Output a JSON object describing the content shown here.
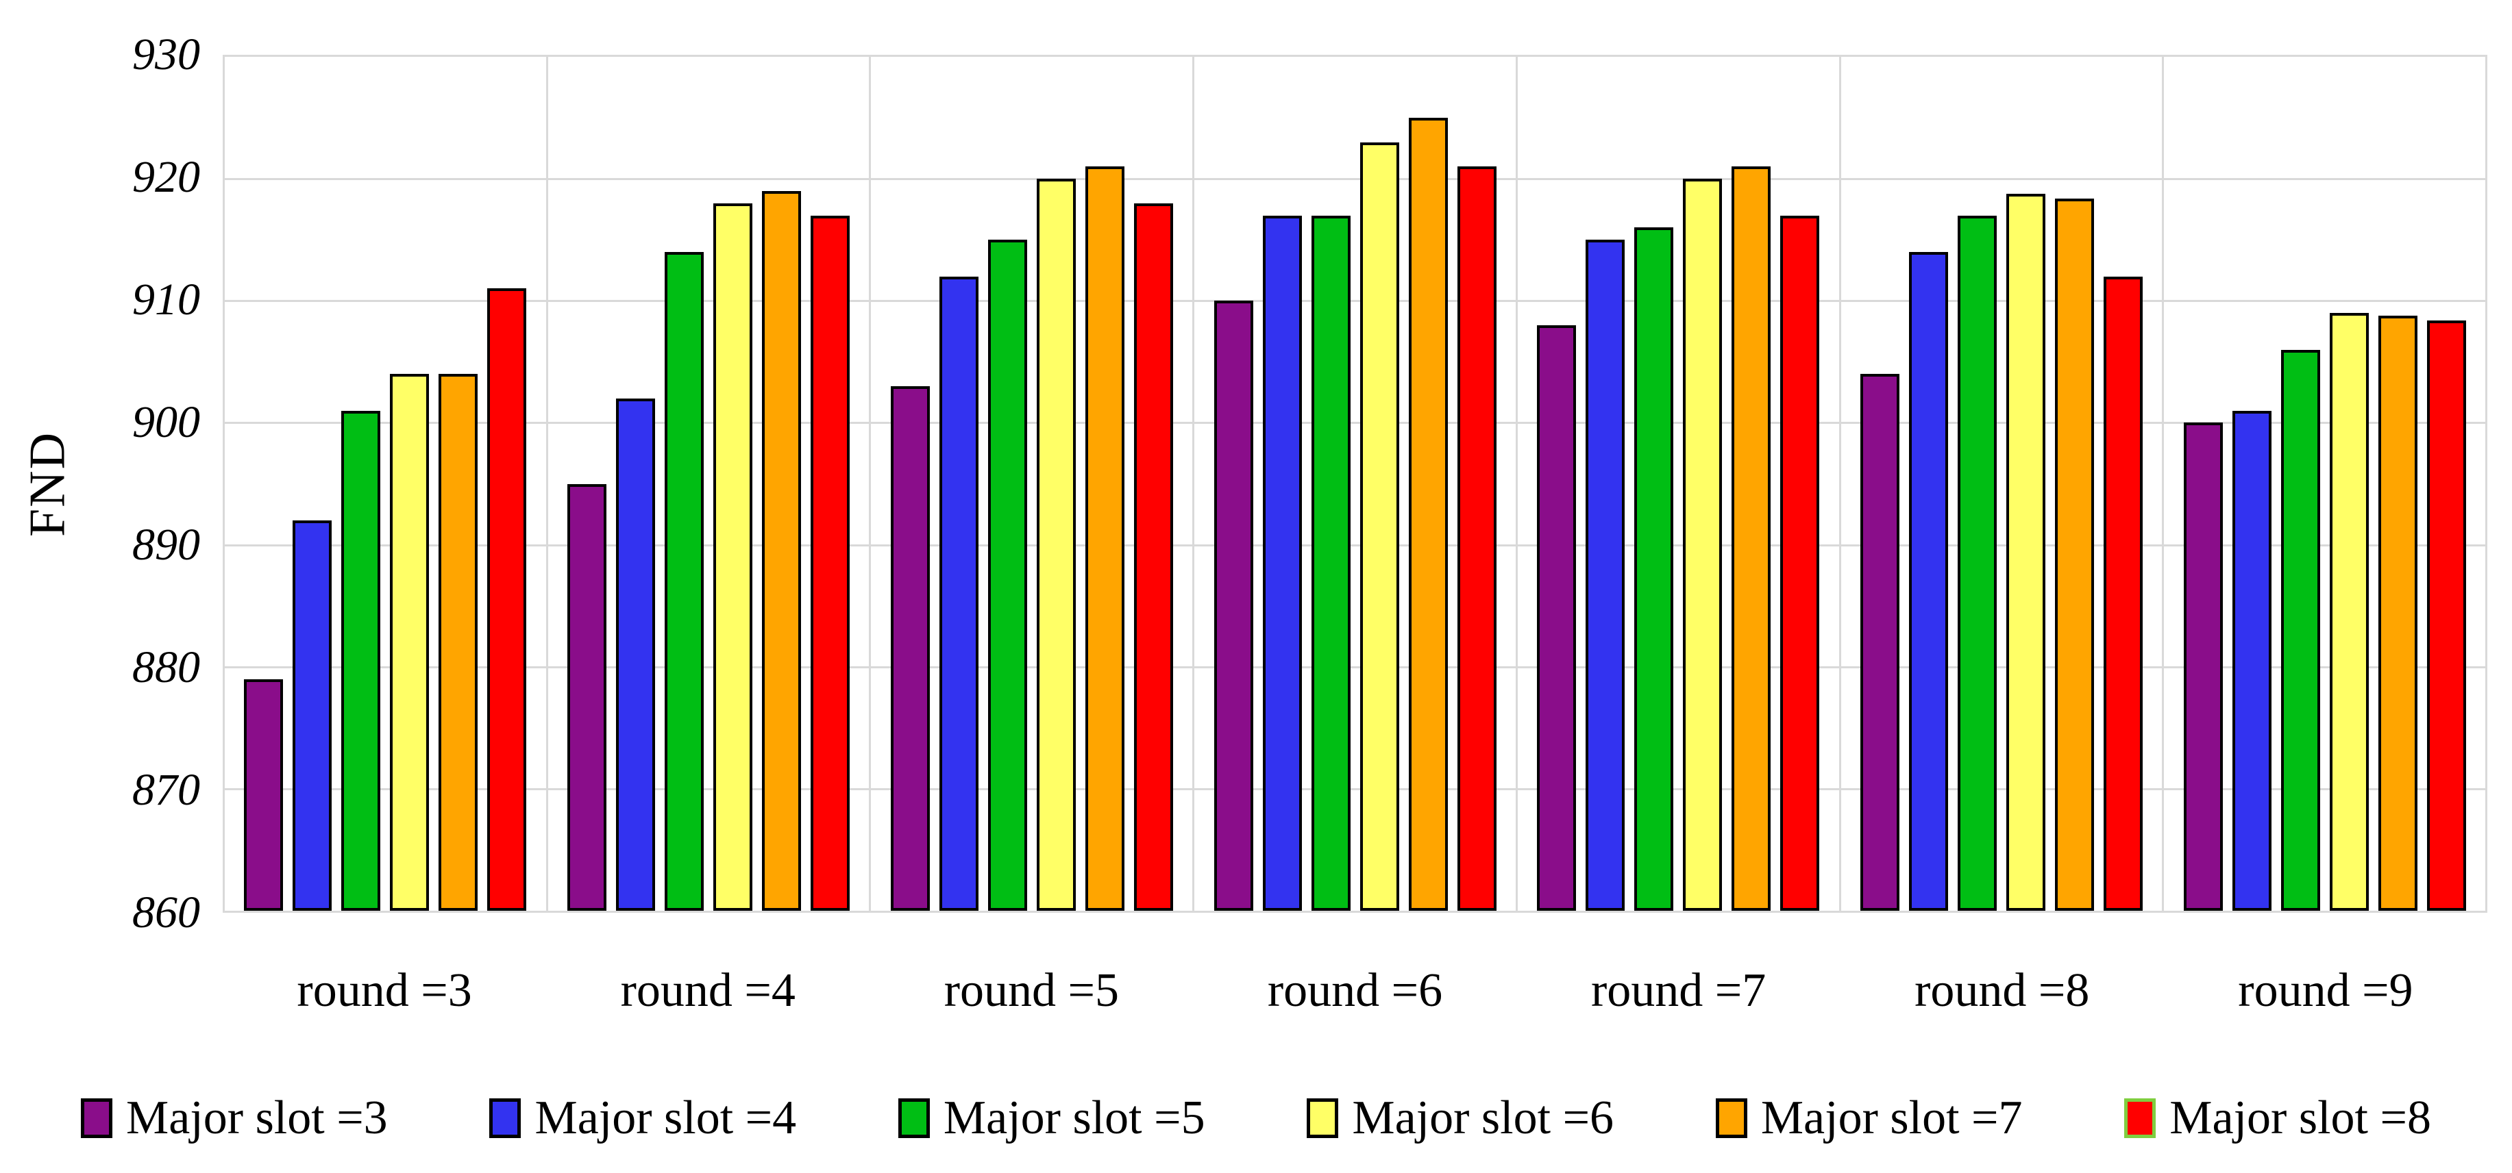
{
  "chart_data": {
    "type": "bar",
    "title": "",
    "xlabel": "",
    "ylabel": "FND",
    "ylim": [
      860,
      930
    ],
    "ytick_step": 10,
    "grid": true,
    "legend_position": "bottom",
    "gridline_color": "#D9D9D9",
    "categories": [
      "round =3",
      "round =4",
      "round =5",
      "round =6",
      "round =7",
      "round =8",
      "round =9"
    ],
    "series": [
      {
        "name": "Major slot =3",
        "color": "#8A0D8A",
        "border": "#000000",
        "values": [
          879,
          895,
          903,
          910,
          908,
          904,
          900
        ]
      },
      {
        "name": "Major slot =4",
        "color": "#3333F0",
        "border": "#000000",
        "values": [
          892,
          902,
          912,
          917,
          915,
          914,
          901
        ]
      },
      {
        "name": "Major slot =5",
        "color": "#00BE14",
        "border": "#000000",
        "values": [
          901,
          914,
          915,
          917,
          916,
          917,
          906
        ]
      },
      {
        "name": "Major slot =6",
        "color": "#FFFF66",
        "border": "#000000",
        "values": [
          904,
          918,
          920,
          923,
          920,
          918.8,
          909
        ]
      },
      {
        "name": "Major slot =7",
        "color": "#FFA500",
        "border": "#000000",
        "values": [
          904,
          919,
          921,
          925,
          921,
          918.4,
          908.8
        ]
      },
      {
        "name": "Major slot =8",
        "color": "#FF0000",
        "border": "#000000",
        "legend_border": "#7FCE3F",
        "values": [
          911,
          917,
          918,
          921,
          917,
          912,
          908.4
        ]
      }
    ]
  }
}
